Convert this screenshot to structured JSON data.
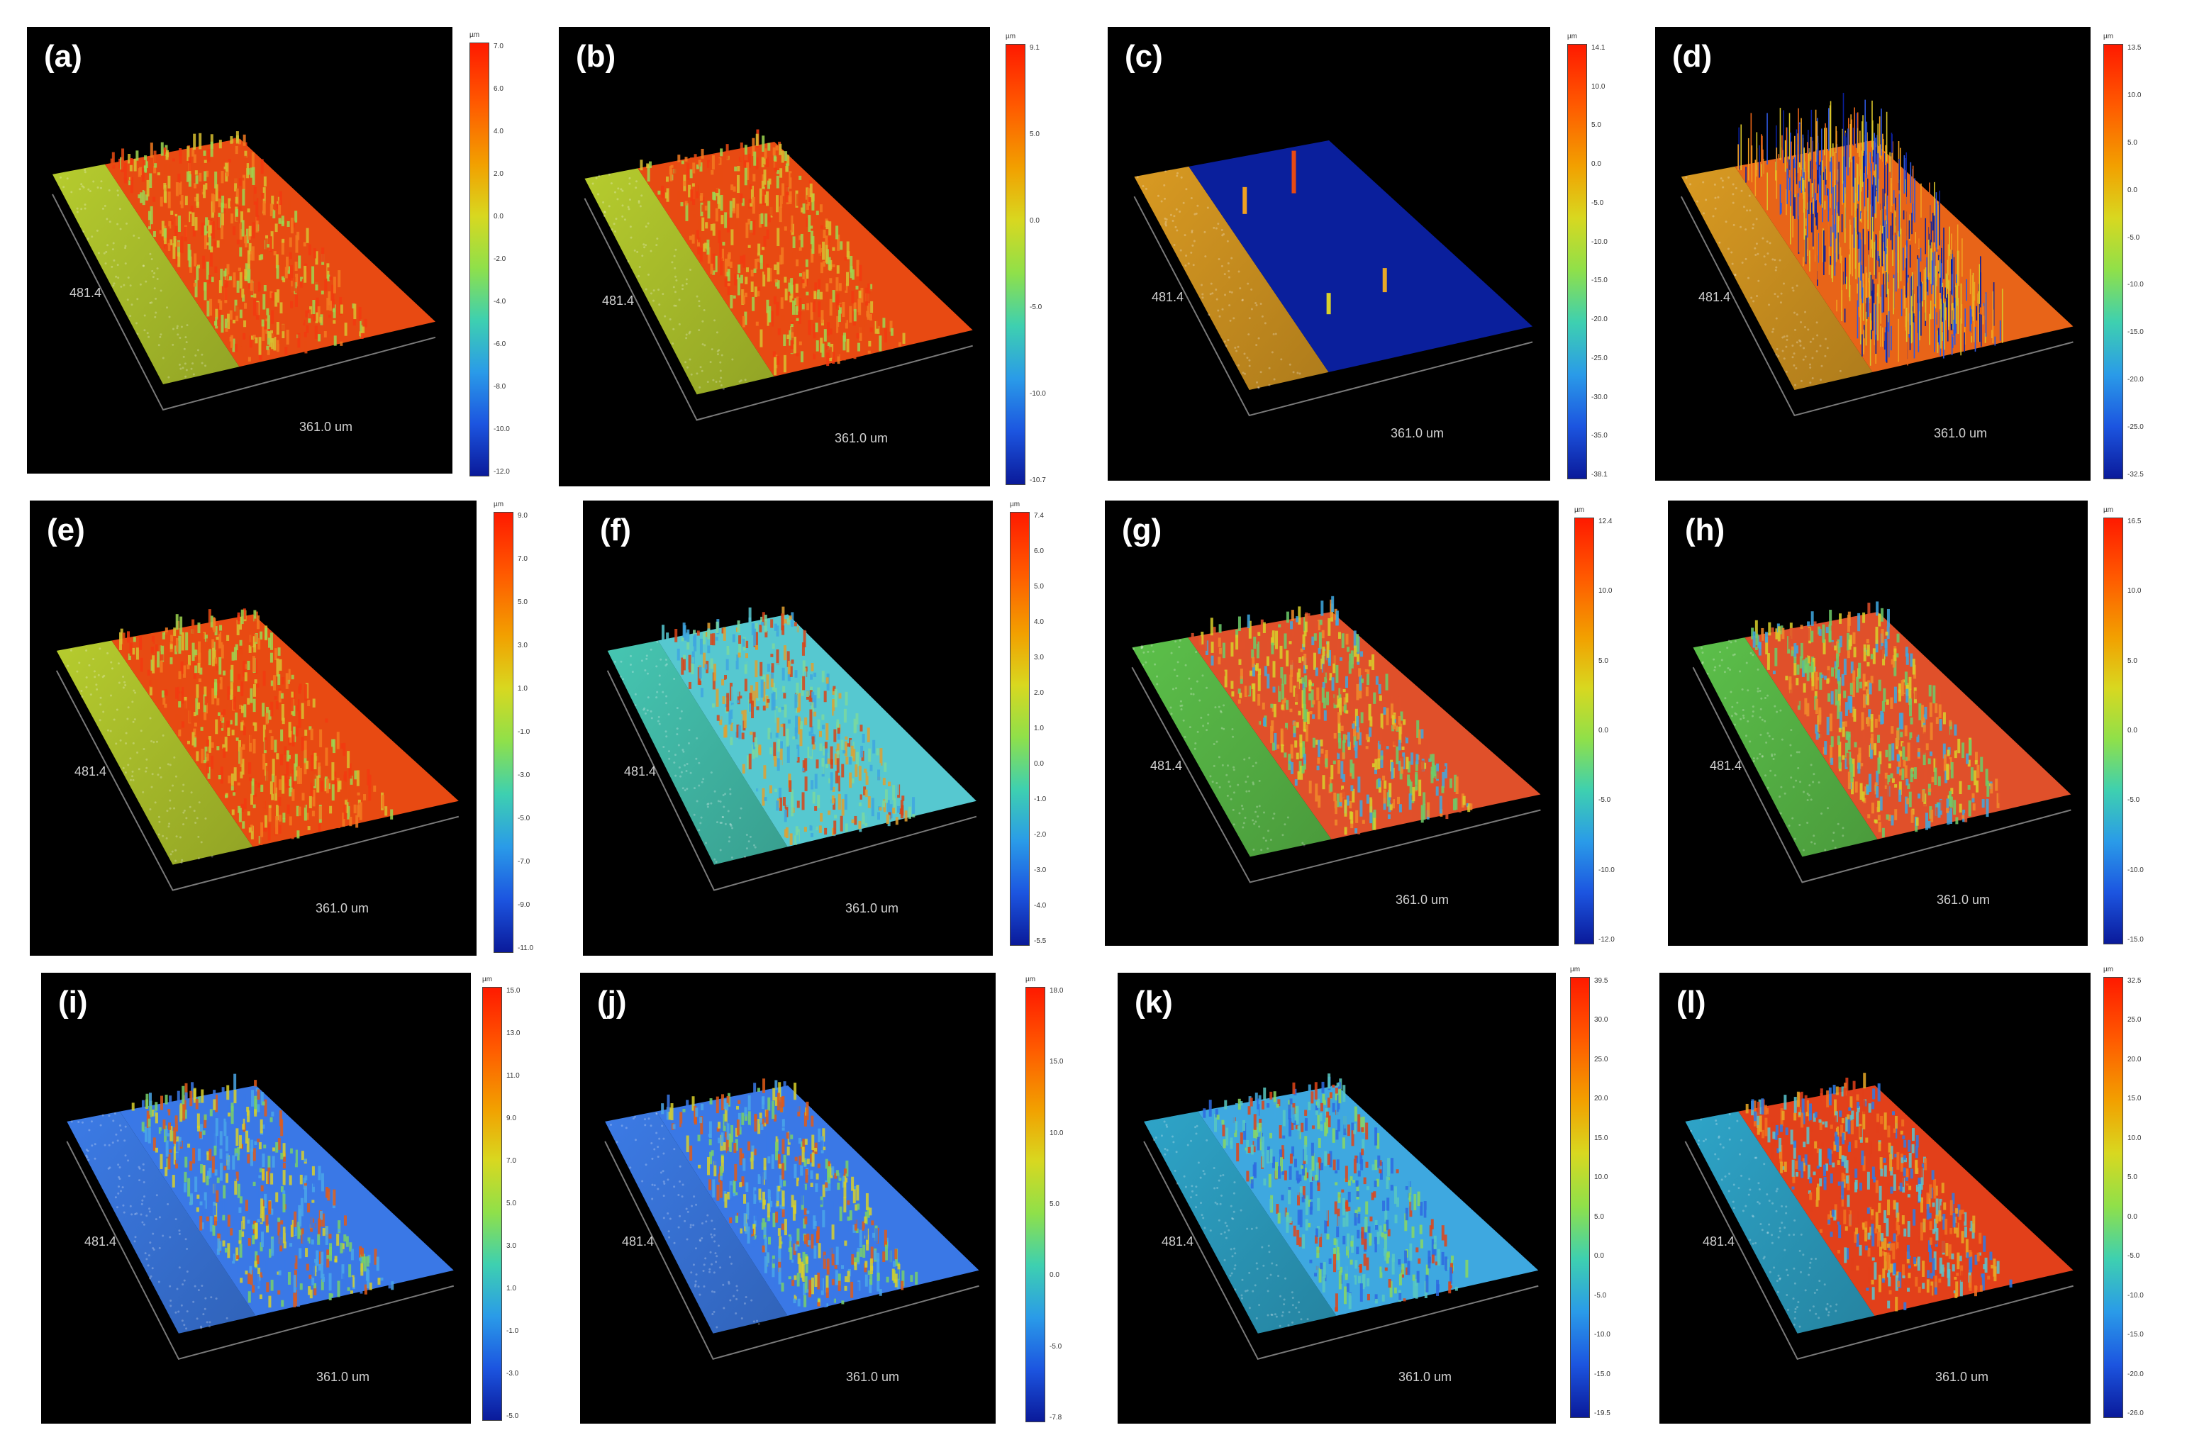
{
  "panels": [
    {
      "label": "(a)",
      "y_axis": "481.4",
      "x_axis": "361.0 um",
      "unit": "µm",
      "scale": [
        "7.0",
        "6.0",
        "4.0",
        "2.0",
        "0.0",
        "-2.0",
        "-4.0",
        "-6.0",
        "-8.0",
        "-10.0",
        "-12.0"
      ],
      "style": "rough-red",
      "left": "yellow"
    },
    {
      "label": "(b)",
      "y_axis": "481.4",
      "x_axis": "361.0 um",
      "unit": "µm",
      "scale": [
        "9.1",
        "5.0",
        "0.0",
        "-5.0",
        "-10.0",
        "-10.7"
      ],
      "style": "rough-red",
      "left": "yellow"
    },
    {
      "label": "(c)",
      "y_axis": "481.4",
      "x_axis": "361.0 um",
      "unit": "µm",
      "scale": [
        "14.1",
        "10.0",
        "5.0",
        "0.0",
        "-5.0",
        "-10.0",
        "-15.0",
        "-20.0",
        "-25.0",
        "-30.0",
        "-35.0",
        "-38.1"
      ],
      "style": "deep-blue",
      "left": "orange"
    },
    {
      "label": "(d)",
      "y_axis": "481.4",
      "x_axis": "361.0 um",
      "unit": "µm",
      "scale": [
        "13.5",
        "10.0",
        "5.0",
        "0.0",
        "-5.0",
        "-10.0",
        "-15.0",
        "-20.0",
        "-25.0",
        "-32.5"
      ],
      "style": "spiky",
      "left": "orange"
    },
    {
      "label": "(e)",
      "y_axis": "481.4",
      "x_axis": "361.0 um",
      "unit": "µm",
      "scale": [
        "9.0",
        "7.0",
        "5.0",
        "3.0",
        "1.0",
        "-1.0",
        "-3.0",
        "-5.0",
        "-7.0",
        "-9.0",
        "-11.0"
      ],
      "style": "rough-red",
      "left": "yellow"
    },
    {
      "label": "(f)",
      "y_axis": "481.4",
      "x_axis": "361.0 um",
      "unit": "µm",
      "scale": [
        "7.4",
        "6.0",
        "5.0",
        "4.0",
        "3.0",
        "2.0",
        "1.0",
        "0.0",
        "-1.0",
        "-2.0",
        "-3.0",
        "-4.0",
        "-5.5"
      ],
      "style": "rough-cyan",
      "left": "cyan"
    },
    {
      "label": "(g)",
      "y_axis": "481.4",
      "x_axis": "361.0 um",
      "unit": "µm",
      "scale": [
        "12.4",
        "10.0",
        "5.0",
        "0.0",
        "-5.0",
        "-10.0",
        "-12.0"
      ],
      "style": "rough-mixed",
      "left": "green"
    },
    {
      "label": "(h)",
      "y_axis": "481.4",
      "x_axis": "361.0 um",
      "unit": "µm",
      "scale": [
        "16.5",
        "10.0",
        "5.0",
        "0.0",
        "-5.0",
        "-10.0",
        "-15.0"
      ],
      "style": "rough-mixed",
      "left": "green"
    },
    {
      "label": "(i)",
      "y_axis": "481.4",
      "x_axis": "361.0 um",
      "unit": "µm",
      "scale": [
        "15.0",
        "13.0",
        "11.0",
        "9.0",
        "7.0",
        "5.0",
        "3.0",
        "1.0",
        "-1.0",
        "-3.0",
        "-5.0"
      ],
      "style": "rough-blue",
      "left": "blue"
    },
    {
      "label": "(j)",
      "y_axis": "481.4",
      "x_axis": "361.0 um",
      "unit": "µm",
      "scale": [
        "18.0",
        "15.0",
        "10.0",
        "5.0",
        "0.0",
        "-5.0",
        "-7.8"
      ],
      "style": "rough-blue",
      "left": "blue"
    },
    {
      "label": "(k)",
      "y_axis": "481.4",
      "x_axis": "361.0 um",
      "unit": "µm",
      "scale": [
        "39.5",
        "30.0",
        "25.0",
        "20.0",
        "15.0",
        "10.0",
        "5.0",
        "0.0",
        "-5.0",
        "-10.0",
        "-15.0",
        "-19.5"
      ],
      "style": "ridge",
      "left": "teal"
    },
    {
      "label": "(l)",
      "y_axis": "481.4",
      "x_axis": "361.0 um",
      "unit": "µm",
      "scale": [
        "32.5",
        "25.0",
        "20.0",
        "15.0",
        "10.0",
        "5.0",
        "0.0",
        "-5.0",
        "-10.0",
        "-15.0",
        "-20.0",
        "-26.0"
      ],
      "style": "ridge-red",
      "left": "teal"
    }
  ],
  "colors": {
    "yellow": "#b6cc2e",
    "orange": "#d99a22",
    "cyan": "#46c6b2",
    "green": "#5cc04a",
    "blue": "#3c7be6",
    "teal": "#2ea4c8",
    "deep_blue": "#0a1f9c",
    "red": "#f23a10"
  }
}
